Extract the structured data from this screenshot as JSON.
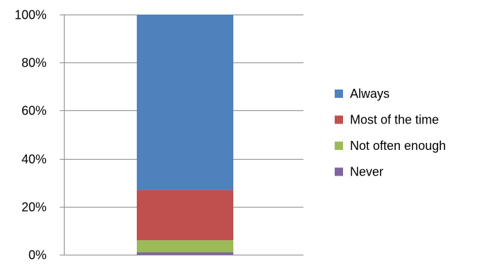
{
  "chart_data": {
    "type": "bar",
    "stacked": true,
    "percent": true,
    "categories": [
      ""
    ],
    "series": [
      {
        "name": "Never",
        "values": [
          1
        ],
        "color": "#8064A2"
      },
      {
        "name": "Not often enough",
        "values": [
          5
        ],
        "color": "#9BBB59"
      },
      {
        "name": "Most of the time",
        "values": [
          21
        ],
        "color": "#C0504D"
      },
      {
        "name": "Always",
        "values": [
          73
        ],
        "color": "#4F81BD"
      }
    ],
    "ylim": [
      0,
      100
    ],
    "yticks": [
      "0%",
      "20%",
      "40%",
      "60%",
      "80%",
      "100%"
    ],
    "grid": true,
    "legend_position": "right",
    "legend_order": [
      "Always",
      "Most of the time",
      "Not often enough",
      "Never"
    ],
    "gridline_color": "#878787"
  }
}
